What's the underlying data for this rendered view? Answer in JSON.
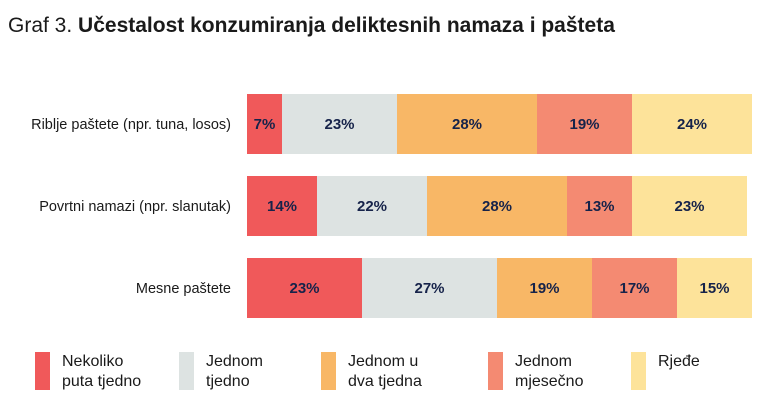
{
  "title": {
    "prefix": "Graf 3.",
    "text": "Učestalost konzumiranja deliktesnih namaza i pašteta"
  },
  "chart_data": {
    "type": "bar",
    "orientation": "horizontal",
    "stacked": true,
    "categories": [
      "Riblje paštete (npr. tuna, losos)",
      "Povrtni namazi (npr. slanutak)",
      "Mesne paštete"
    ],
    "series": [
      {
        "name": "Nekoliko puta tjedno",
        "values": [
          7,
          14,
          23
        ],
        "labels": [
          "7%",
          "14%",
          "23%"
        ],
        "color": "#f0595a"
      },
      {
        "name": "Jednom tjedno",
        "values": [
          23,
          22,
          27
        ],
        "labels": [
          "23%",
          "22%",
          "27%"
        ],
        "color": "#dde3e2"
      },
      {
        "name": "Jednom u dva tjedna",
        "values": [
          28,
          28,
          19
        ],
        "labels": [
          "28%",
          "28%",
          "19%"
        ],
        "color": "#f8b766"
      },
      {
        "name": "Jednom mjesečno",
        "values": [
          19,
          13,
          17
        ],
        "labels": [
          "19%",
          "13%",
          "17%"
        ],
        "color": "#f48a72"
      },
      {
        "name": "Rjeđe",
        "values": [
          24,
          23,
          15
        ],
        "labels": [
          "24%",
          "23%",
          "15%"
        ],
        "color": "#fde39a"
      }
    ],
    "xlim": [
      0,
      101
    ],
    "grid": false,
    "legend_position": "bottom"
  },
  "legend": [
    {
      "line1": "Nekoliko",
      "line2": "puta tjedno"
    },
    {
      "line1": "Jednom",
      "line2": "tjedno"
    },
    {
      "line1": "Jednom u",
      "line2": "dva tjedna"
    },
    {
      "line1": "Jednom",
      "line2": "mjesečno"
    },
    {
      "line1": "Rjeđe",
      "line2": ""
    }
  ]
}
